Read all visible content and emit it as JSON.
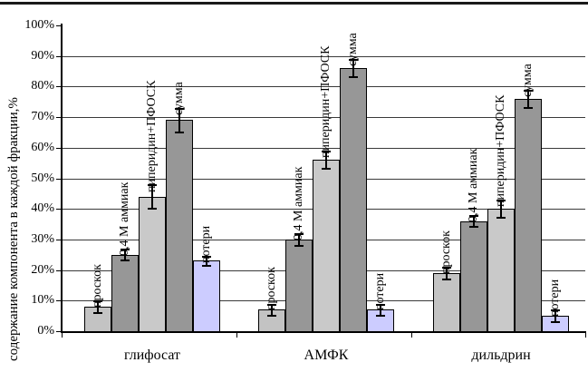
{
  "figure": {
    "ylabel": "содержание компонента в каждой фракции,%"
  },
  "chart_data": {
    "type": "bar",
    "title": "",
    "xlabel": "",
    "ylabel": "содержание компонента в каждой фракции,%",
    "categories": [
      "глифосат",
      "АМФК",
      "дильдрин"
    ],
    "series": [
      {
        "name": "проскок",
        "values": [
          8,
          7,
          19
        ],
        "errors": [
          2,
          2,
          2
        ],
        "color": "#c3c3c3"
      },
      {
        "name": "0,4 М аммиак",
        "values": [
          25,
          30,
          36
        ],
        "errors": [
          2,
          2,
          2
        ],
        "color": "#979797"
      },
      {
        "name": "пиперидин+ПФОСК",
        "values": [
          44,
          56,
          40
        ],
        "errors": [
          4,
          3,
          3
        ],
        "color": "#c9c9c9"
      },
      {
        "name": "сумма",
        "values": [
          69,
          86,
          76
        ],
        "errors": [
          4,
          3,
          3
        ],
        "color": "#979797"
      },
      {
        "name": "потери",
        "values": [
          23,
          7,
          5
        ],
        "errors": [
          1.5,
          2,
          2
        ],
        "color": "#ccccff"
      }
    ],
    "ylim": [
      0,
      100
    ],
    "ytick_labels": [
      "0%",
      "10%",
      "20%",
      "30%",
      "40%",
      "50%",
      "60%",
      "70%",
      "80%",
      "90%",
      "100%"
    ],
    "grid": true,
    "legend": "none",
    "bar_label_rotation": -90,
    "error_bars": true
  }
}
